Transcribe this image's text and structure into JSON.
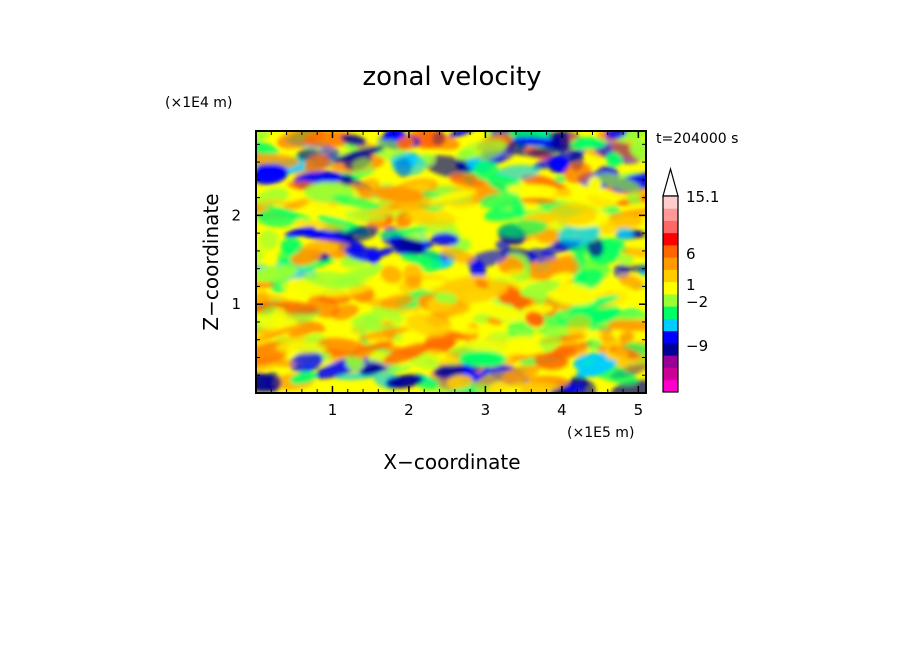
{
  "chart_data": {
    "type": "heatmap",
    "title": "zonal velocity",
    "xlabel": "X−coordinate",
    "ylabel": "Z−coordinate",
    "x_unit_label": "(×1E5 m)",
    "y_unit_label": "(×1E4 m)",
    "time_label": "t=204000 s",
    "xlim": [
      0,
      5.1
    ],
    "ylim": [
      0,
      2.95
    ],
    "x_ticks": [
      1,
      2,
      3,
      4,
      5
    ],
    "y_ticks": [
      1,
      2
    ],
    "x_tick_labels": [
      "1",
      "2",
      "3",
      "4",
      "5"
    ],
    "y_tick_labels": [
      "1",
      "2"
    ],
    "colorbar": {
      "labels": [
        {
          "text": "15.1",
          "value": 15.1
        },
        {
          "text": "6",
          "value": 6
        },
        {
          "text": "1",
          "value": 1
        },
        {
          "text": "−2",
          "value": -2
        },
        {
          "text": "−9",
          "value": -9
        }
      ],
      "colors": [
        "#ff00cc",
        "#cc0099",
        "#990099",
        "#000099",
        "#0000ff",
        "#00ccff",
        "#00ff66",
        "#99ff33",
        "#ffff00",
        "#ffcc00",
        "#ff9900",
        "#ff6600",
        "#ff0000",
        "#ff6666",
        "#ff9999",
        "#ffcccc"
      ]
    },
    "grid": false
  }
}
